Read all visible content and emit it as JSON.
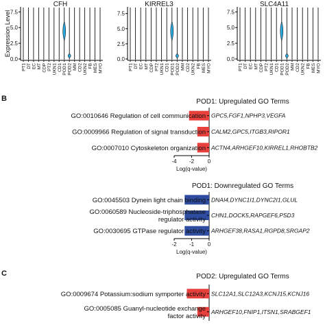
{
  "violin": {
    "ylabel": "Expression Level",
    "categories": [
      "PT1",
      "DT",
      "EC",
      "MT",
      "CDP",
      "PT2",
      "UKN1",
      "CD1",
      "POD1",
      "POD2",
      "MM",
      "CD2",
      "UKN2",
      "FB",
      "MES",
      "MYO"
    ],
    "highlight_color": "#29a9e0",
    "plots": [
      {
        "title": "CFH",
        "ticks": [
          "0.0",
          "2.5",
          "5.0",
          "7.5"
        ],
        "ylim": [
          0,
          8.3
        ],
        "highlight": [
          "POD1",
          "POD2"
        ]
      },
      {
        "title": "KIRREL3",
        "ticks": [
          "0.0",
          "2.5",
          "5.0",
          "7.5"
        ],
        "ylim": [
          0,
          8.6
        ],
        "highlight": [
          "POD1",
          "POD2"
        ]
      },
      {
        "title": "SLC4A11",
        "ticks": [
          "0.0",
          "2.5",
          "5.0",
          "7.5"
        ],
        "ylim": [
          0,
          8.3
        ],
        "highlight": [
          "POD1",
          "POD2"
        ]
      }
    ]
  },
  "panel_b_label": "B",
  "panel_c_label": "C",
  "chart_data": [
    {
      "type": "bar",
      "title": "POD1: Upregulated GO Terms",
      "xlabel": "Log(q-value)",
      "xlim": [
        -4,
        0
      ],
      "xticks": [
        "-4",
        "-2",
        "0"
      ],
      "color": "#e8403c",
      "categories": [
        "GO:0010646 Regulation of cell communication",
        "GO:0009966 Regulation of signal transduction",
        "GO:0007010 Cytoskeleton organization"
      ],
      "values": [
        -2.3,
        -1.35,
        -1.35
      ],
      "annotations": [
        "GPC5,FGF1,NPHP3,VEGFA",
        "CALM2,GPC5,ITGB3,RIPOR1",
        "ACTN4,ARHGEF10,KIRREL1,RHOBTB2"
      ]
    },
    {
      "type": "bar",
      "title": "POD1: Downregulated GO Terms",
      "xlabel": "Log(q-value)",
      "xlim": [
        -2,
        0
      ],
      "xticks": [
        "-2",
        "-1",
        "0"
      ],
      "color": "#2e4da0",
      "categories": [
        "GO:0045503 Dynein light chain binding",
        "GO:0060589 Nucleoside-triphosphatase regulator activity",
        "GO:0030695 GTPase regulator activity"
      ],
      "values": [
        -1.4,
        -1.4,
        -1.4
      ],
      "annotations": [
        "DNAI4,DYNC1I1,DYNC2I1,GLUL",
        "CHN1,DOCK5,RAPGEF6,PSD3",
        "ARHGEF38,RASA1,RGPD8,SRGAP2"
      ]
    },
    {
      "type": "bar",
      "title": "POD2: Upregulated GO Terms",
      "xlabel": "",
      "color": "#e8403c",
      "categories": [
        "GO:0009674 Potassium:sodium symporter activity",
        "GO:0005085 Guanyl-nucleotide exchange factor activity"
      ],
      "values": [
        -2.55,
        -1.35
      ],
      "annotations": [
        "SLC12A1,SLC12A3,KCNJ15,KCNJ16",
        "ARHGEF10,FNIP1,ITSN1,SRABGEF1"
      ]
    }
  ]
}
